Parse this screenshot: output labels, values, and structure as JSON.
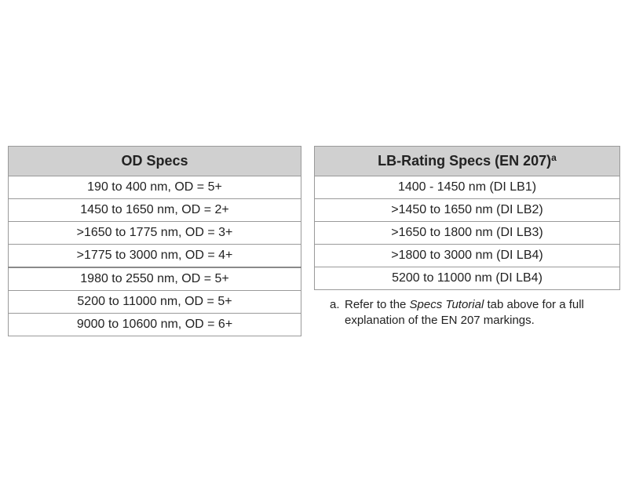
{
  "od_table": {
    "header": "OD Specs",
    "rows": [
      "190 to 400 nm, OD = 5+",
      "1450 to 1650 nm, OD = 2+",
      ">1650 to 1775 nm, OD = 3+",
      ">1775 to 3000 nm, OD = 4+",
      "1980 to 2550 nm, OD = 5+",
      "5200 to 11000 nm, OD = 5+",
      "9000 to 10600 nm, OD = 6+"
    ]
  },
  "lb_table": {
    "header": "LB-Rating Specs (EN 207)",
    "header_superscript": "a",
    "rows": [
      "1400 - 1450 nm (DI LB1)",
      ">1450 to 1650 nm (DI LB2)",
      ">1650 to 1800 nm (DI LB3)",
      ">1800 to 3000 nm (DI LB4)",
      "5200 to 11000 nm (DI LB4)"
    ]
  },
  "footnote": {
    "marker": "a.",
    "text_before": "Refer to the ",
    "text_italic": "Specs Tutorial",
    "text_after": " tab above for a full explanation of the EN 207 markings."
  }
}
